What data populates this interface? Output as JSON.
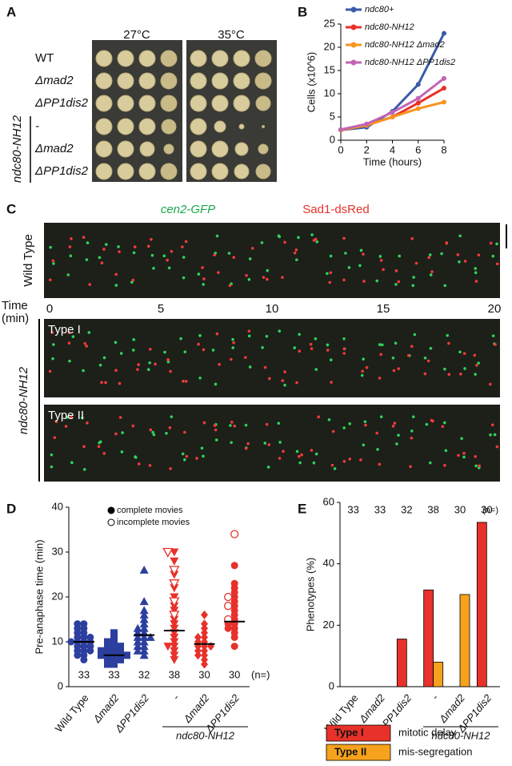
{
  "panel_letters": [
    "A",
    "B",
    "C",
    "D",
    "E"
  ],
  "panel_a": {
    "temperatures": [
      "27°C",
      "35°C"
    ],
    "strains": [
      "WT",
      "Δmad2",
      "ΔPP1dis2",
      "-",
      "Δmad2",
      "ΔPP1dis2"
    ],
    "group_label": "ndc80-NH12"
  },
  "panel_c": {
    "channels": [
      "cen2-GFP",
      "Sad1-dsRed"
    ],
    "rows": [
      "Wild Type",
      "Type I",
      "Type II"
    ],
    "time_label": "Time",
    "time_unit": "(min)",
    "time_ticks": [
      0,
      5,
      10,
      15,
      20
    ],
    "group_label": "ndc80-NH12"
  },
  "chart_data": [
    {
      "type": "line",
      "xlabel": "Time (hours)",
      "ylabel": "Cells (x10^6)",
      "x": [
        0,
        2,
        4,
        6,
        8
      ],
      "xlim": [
        0,
        8
      ],
      "xticks": [
        0,
        2,
        4,
        6,
        8
      ],
      "ylim": [
        0,
        25
      ],
      "yticks": [
        0,
        5,
        10,
        15,
        20,
        25
      ],
      "series": [
        {
          "name": "ndc80+",
          "color": "#3b5ba9",
          "values": [
            2.2,
            2.8,
            6.2,
            12,
            23
          ]
        },
        {
          "name": "ndc80-NH12",
          "color": "#e8312a",
          "values": [
            2.2,
            3.2,
            5,
            8,
            11.2
          ]
        },
        {
          "name": "ndc80-NH12 Δmad2",
          "color": "#f7941d",
          "values": [
            2.2,
            3.2,
            5,
            6.8,
            8.2
          ]
        },
        {
          "name": "ndc80-NH12 ΔPP1dis2",
          "color": "#c264b5",
          "values": [
            2.3,
            3.5,
            6,
            9,
            13.3
          ]
        }
      ]
    },
    {
      "type": "dot",
      "ylabel": "Pre-anaphase time (min)",
      "categories": [
        "Wild Type",
        "Δmad2",
        "ΔPP1dis2",
        "-",
        "Δmad2",
        "ΔPP1dis2"
      ],
      "ylim": [
        0,
        40
      ],
      "yticks": [
        0,
        10,
        20,
        30,
        40
      ],
      "legend_labels": [
        "complete movies",
        "incomplete movies"
      ],
      "n": [
        33,
        33,
        32,
        38,
        30,
        30
      ],
      "n_label": "(n=)",
      "group_label": "ndc80-NH12",
      "groups": [
        {
          "color": "#2c3f9e",
          "marker": "circle",
          "median": 10,
          "complete": [
            6,
            7,
            7,
            8,
            8,
            8,
            9,
            9,
            9,
            10,
            10,
            10,
            10,
            11,
            11,
            11,
            12,
            12,
            13,
            13,
            14,
            14
          ],
          "incomplete": []
        },
        {
          "color": "#2c3f9e",
          "marker": "square",
          "median": 7,
          "complete": [
            5,
            5,
            6,
            6,
            6,
            7,
            7,
            7,
            7,
            7,
            8,
            8,
            8,
            8,
            9,
            9,
            9,
            10,
            10,
            11,
            12
          ],
          "incomplete": []
        },
        {
          "color": "#2c3f9e",
          "marker": "triangle",
          "median": 11.5,
          "complete": [
            7,
            8,
            8,
            9,
            9,
            10,
            10,
            11,
            11,
            11,
            12,
            12,
            13,
            13,
            14,
            15,
            16,
            17,
            19,
            26
          ],
          "incomplete": []
        },
        {
          "color": "#e8312a",
          "marker": "down-triangle",
          "median": 12.5,
          "complete": [
            6,
            7,
            8,
            9,
            9,
            10,
            11,
            12,
            13,
            14,
            15,
            17,
            18,
            20,
            22,
            25,
            28,
            30
          ],
          "incomplete": [
            16,
            19,
            23,
            26,
            30
          ]
        },
        {
          "color": "#e8312a",
          "marker": "diamond",
          "median": 9.5,
          "complete": [
            5,
            6,
            7,
            7,
            8,
            8,
            9,
            9,
            9,
            10,
            10,
            11,
            11,
            12,
            13,
            14,
            16
          ],
          "incomplete": []
        },
        {
          "color": "#e8312a",
          "marker": "circle",
          "median": 14.5,
          "complete": [
            9,
            11,
            12,
            13,
            13,
            14,
            14,
            15,
            16,
            17,
            18,
            19,
            20,
            21,
            22,
            23,
            27
          ],
          "incomplete": [
            15,
            18,
            20,
            34
          ]
        }
      ]
    },
    {
      "type": "bar",
      "ylabel": "Phenotypes (%)",
      "categories": [
        "Wild Type",
        "Δmad2",
        "ΔPP1dis2",
        "-",
        "Δmad2",
        "ΔPP1dis2"
      ],
      "ylim": [
        0,
        60
      ],
      "yticks": [
        0,
        20,
        40,
        60
      ],
      "n": [
        33,
        33,
        32,
        38,
        30,
        30
      ],
      "n_label": "(n=)",
      "group_label": "ndc80-NH12",
      "series": [
        {
          "name": "Type I",
          "description": "mitotic delay",
          "color": "#e8312a",
          "values": [
            0,
            0,
            15.5,
            31.5,
            0,
            53.5
          ]
        },
        {
          "name": "Type II",
          "description": "mis-segregation",
          "color": "#f7a21d",
          "values": [
            0,
            0,
            0,
            8,
            30,
            0
          ]
        }
      ]
    }
  ]
}
